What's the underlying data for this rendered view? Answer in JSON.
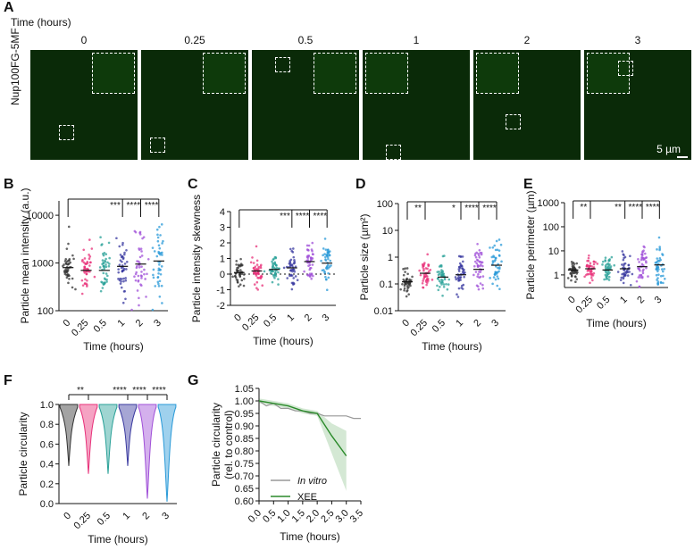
{
  "panel_letters": {
    "A": "A",
    "B": "B",
    "C": "C",
    "D": "D",
    "E": "E",
    "F": "F",
    "G": "G"
  },
  "panelA": {
    "time_title": "Time (hours)",
    "times": [
      "0",
      "0.25",
      "0.5",
      "1",
      "2",
      "3"
    ],
    "ylabel": "Nup100FG-5MF",
    "scale_bar": "5 µm"
  },
  "x_categories": [
    "0",
    "0.25",
    "0.5",
    "1",
    "2",
    "3"
  ],
  "x_title": "Time (hours)",
  "sig_labels": {
    "B": [
      "***",
      "****",
      "****"
    ],
    "C": [
      "***",
      "****",
      "****"
    ],
    "D": [
      "**",
      "*",
      "****",
      "****"
    ],
    "E": [
      "**",
      "**",
      "****",
      "****"
    ],
    "F": [
      "**",
      "****",
      "****",
      "****"
    ]
  },
  "series_colors": [
    "#333333",
    "#e8327a",
    "#2aa198",
    "#3a3aa0",
    "#a050d8",
    "#2a9ad8"
  ],
  "chart_data": [
    {
      "panel": "B",
      "type": "scatter",
      "ylabel": "Particle mean intensity (a.u.)",
      "yscale": "log",
      "ylim": [
        100,
        20000
      ],
      "yticks": [
        "100",
        "1000",
        "10000"
      ],
      "categories": [
        "0",
        "0.25",
        "0.5",
        "1",
        "2",
        "3"
      ],
      "medians": [
        800,
        700,
        700,
        850,
        950,
        1100
      ]
    },
    {
      "panel": "C",
      "type": "scatter",
      "ylabel": "Particle intensity skewness",
      "ylim": [
        -2,
        4
      ],
      "yticks": [
        "-2",
        "-1",
        "0",
        "1",
        "2",
        "3",
        "4"
      ],
      "categories": [
        "0",
        "0.25",
        "0.5",
        "1",
        "2",
        "3"
      ],
      "medians": [
        0.1,
        0.2,
        0.3,
        0.4,
        0.8,
        0.7
      ]
    },
    {
      "panel": "D",
      "type": "scatter",
      "ylabel": "Particle size (µm²)",
      "yscale": "log",
      "ylim": [
        0.01,
        100
      ],
      "yticks": [
        "0.01",
        "0.1",
        "1",
        "10",
        "100"
      ],
      "categories": [
        "0",
        "0.25",
        "0.5",
        "1",
        "2",
        "3"
      ],
      "medians": [
        0.12,
        0.25,
        0.18,
        0.22,
        0.35,
        0.5
      ]
    },
    {
      "panel": "E",
      "type": "scatter",
      "ylabel": "Particle perimeter (µm)",
      "yscale": "log",
      "ylim": [
        0.3,
        1000
      ],
      "yticks": [
        "1",
        "10",
        "100",
        "1000"
      ],
      "categories": [
        "0",
        "0.25",
        "0.5",
        "1",
        "2",
        "3"
      ],
      "medians": [
        1.6,
        1.8,
        1.6,
        1.8,
        2.2,
        2.6
      ]
    },
    {
      "panel": "F",
      "type": "violin",
      "ylabel": "Particle circularity",
      "ylim": [
        0,
        1
      ],
      "yticks": [
        "0.0",
        "0.2",
        "0.4",
        "0.6",
        "0.8",
        "1.0"
      ],
      "categories": [
        "0",
        "0.25",
        "0.5",
        "1",
        "2",
        "3"
      ],
      "mins": [
        0.38,
        0.3,
        0.3,
        0.38,
        0.05,
        0.02
      ]
    },
    {
      "panel": "G",
      "type": "line",
      "ylabel": "Particle circularity (rel. to control)",
      "xlabel": "Time (hours)",
      "ylim": [
        0.6,
        1.05
      ],
      "xlim": [
        0,
        3.5
      ],
      "yticks": [
        "0.60",
        "0.65",
        "0.70",
        "0.75",
        "0.80",
        "0.85",
        "0.90",
        "0.95",
        "1.00",
        "1.05"
      ],
      "xticks": [
        "0.0",
        "0.5",
        "1.0",
        "1.5",
        "2.0",
        "2.5",
        "3.0",
        "3.5"
      ],
      "series": [
        {
          "name": "In vitro",
          "color": "#999999",
          "x": [
            0,
            0.25,
            0.5,
            0.75,
            1,
            1.25,
            1.5,
            1.75,
            2,
            2.25,
            2.5,
            2.75,
            3,
            3.25,
            3.5
          ],
          "y": [
            1.0,
            0.98,
            0.99,
            0.97,
            0.97,
            0.96,
            0.96,
            0.95,
            0.95,
            0.94,
            0.94,
            0.94,
            0.94,
            0.93,
            0.93
          ]
        },
        {
          "name": "XEE",
          "color": "#2a8a2a",
          "x": [
            0,
            0.5,
            1,
            1.5,
            2,
            2.5,
            3
          ],
          "y": [
            1.0,
            0.99,
            0.98,
            0.96,
            0.95,
            0.86,
            0.78
          ]
        }
      ]
    }
  ]
}
